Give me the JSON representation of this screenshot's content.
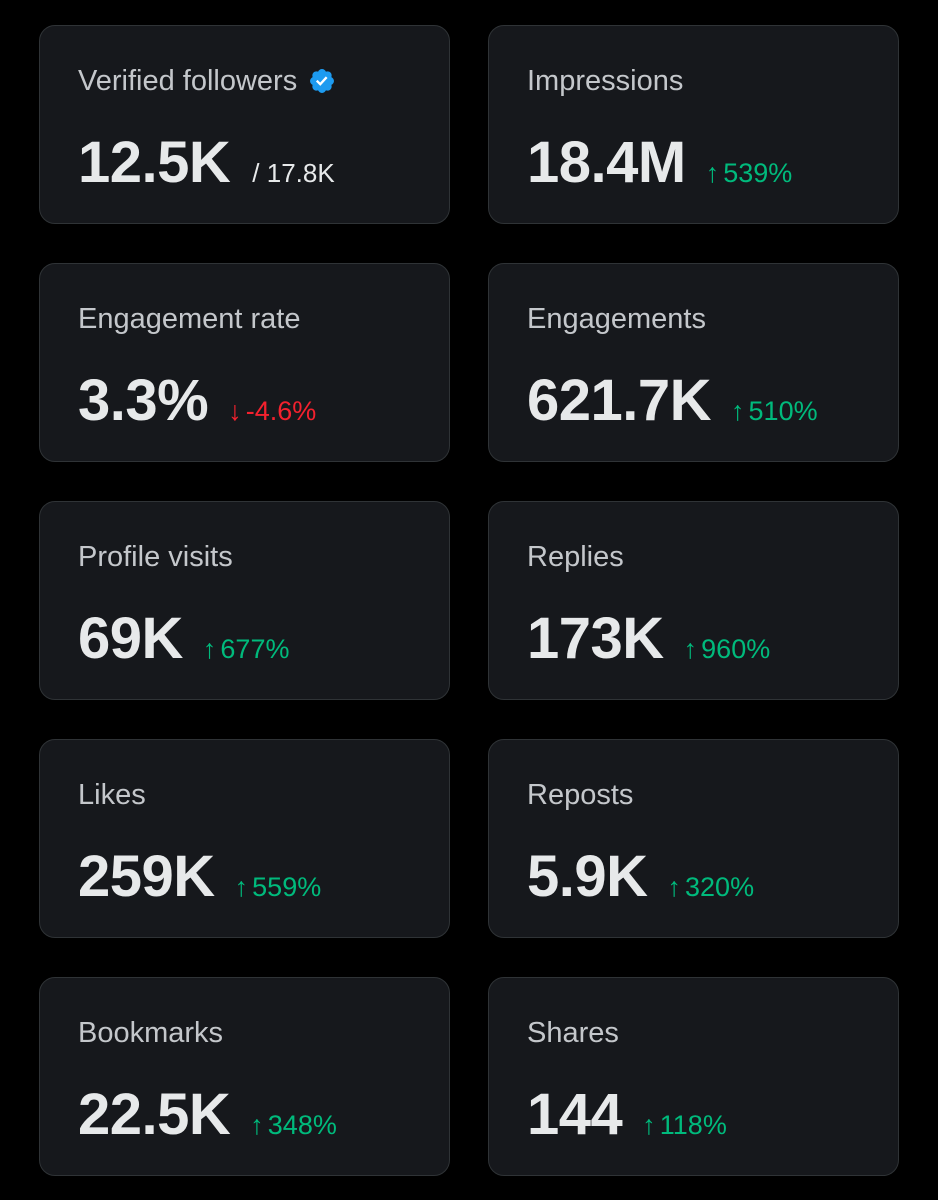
{
  "colors": {
    "background": "#000000",
    "card_background": "#16181c",
    "card_border": "#2f3336",
    "positive": "#00ba7c",
    "negative": "#f4212e",
    "verified_badge": "#1d9bf0"
  },
  "metrics": [
    {
      "label": "Verified followers",
      "value": "12.5K",
      "sub": "/ 17.8K",
      "icon": "verified-badge-icon"
    },
    {
      "label": "Impressions",
      "value": "18.4M",
      "arrow": "↑",
      "change": "539%",
      "direction": "up"
    },
    {
      "label": "Engagement rate",
      "value": "3.3%",
      "arrow": "↓",
      "change": "-4.6%",
      "direction": "down"
    },
    {
      "label": "Engagements",
      "value": "621.7K",
      "arrow": "↑",
      "change": "510%",
      "direction": "up"
    },
    {
      "label": "Profile visits",
      "value": "69K",
      "arrow": "↑",
      "change": "677%",
      "direction": "up"
    },
    {
      "label": "Replies",
      "value": "173K",
      "arrow": "↑",
      "change": "960%",
      "direction": "up"
    },
    {
      "label": "Likes",
      "value": "259K",
      "arrow": "↑",
      "change": "559%",
      "direction": "up"
    },
    {
      "label": "Reposts",
      "value": "5.9K",
      "arrow": "↑",
      "change": "320%",
      "direction": "up"
    },
    {
      "label": "Bookmarks",
      "value": "22.5K",
      "arrow": "↑",
      "change": "348%",
      "direction": "up"
    },
    {
      "label": "Shares",
      "value": "144",
      "arrow": "↑",
      "change": "118%",
      "direction": "up"
    }
  ]
}
